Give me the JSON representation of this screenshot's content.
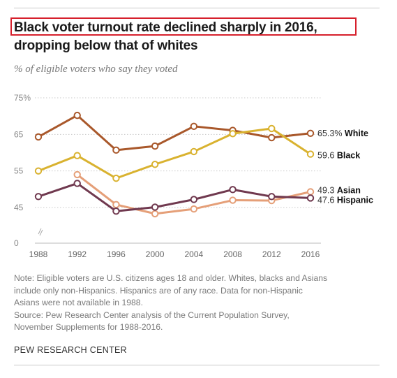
{
  "title_lines": [
    "Black voter turnout rate declined sharply in 2016,",
    "dropping below that of whites"
  ],
  "subtitle": "% of eligible voters who say they voted",
  "notes": [
    "Note: Eligible voters are U.S. citizens ages 18 and older. Whites, blacks and Asians",
    "include only non-Hispanics. Hispanics are of any race. Data for non-Hispanic",
    "Asians were not available in 1988.",
    "Source: Pew Research Center analysis of the Current Population Survey,",
    "November Supplements for 1988-2016."
  ],
  "source_label": "PEW RESEARCH CENTER",
  "highlight_color": "#d6202c",
  "chart_data": {
    "type": "line",
    "x": [
      1988,
      1992,
      1996,
      2000,
      2004,
      2008,
      2012,
      2016
    ],
    "x_tick_labels": [
      "1988",
      "1992",
      "1996",
      "2000",
      "2004",
      "2008",
      "2012",
      "2016"
    ],
    "y_ticks": [
      {
        "value": 75,
        "label": "75%"
      },
      {
        "value": 65,
        "label": "65"
      },
      {
        "value": 55,
        "label": "55"
      },
      {
        "value": 45,
        "label": "45"
      },
      {
        "value": 0,
        "label": "0"
      }
    ],
    "y_axis_break": {
      "from": 0,
      "to": 40
    },
    "grid": "horizontal dotted",
    "series": [
      {
        "name": "White",
        "color": "#a9582b",
        "values": [
          64.3,
          70.2,
          60.7,
          61.8,
          67.2,
          66.1,
          64.1,
          65.3
        ],
        "end_label_value": "65.3%",
        "end_label_name": "White"
      },
      {
        "name": "Black",
        "color": "#d9b22f",
        "values": [
          55.0,
          59.2,
          53.0,
          56.8,
          60.3,
          65.2,
          66.6,
          59.6
        ],
        "end_label_value": "59.6",
        "end_label_name": "Black"
      },
      {
        "name": "Asian",
        "color": "#e59f78",
        "values": [
          null,
          54.0,
          45.8,
          43.3,
          44.6,
          47.0,
          46.9,
          49.3
        ],
        "end_label_value": "49.3",
        "end_label_name": "Asian"
      },
      {
        "name": "Hispanic",
        "color": "#70394f",
        "values": [
          48.0,
          51.6,
          44.0,
          45.1,
          47.2,
          49.9,
          48.0,
          47.6
        ],
        "end_label_value": "47.6",
        "end_label_name": "Hispanic"
      }
    ]
  }
}
